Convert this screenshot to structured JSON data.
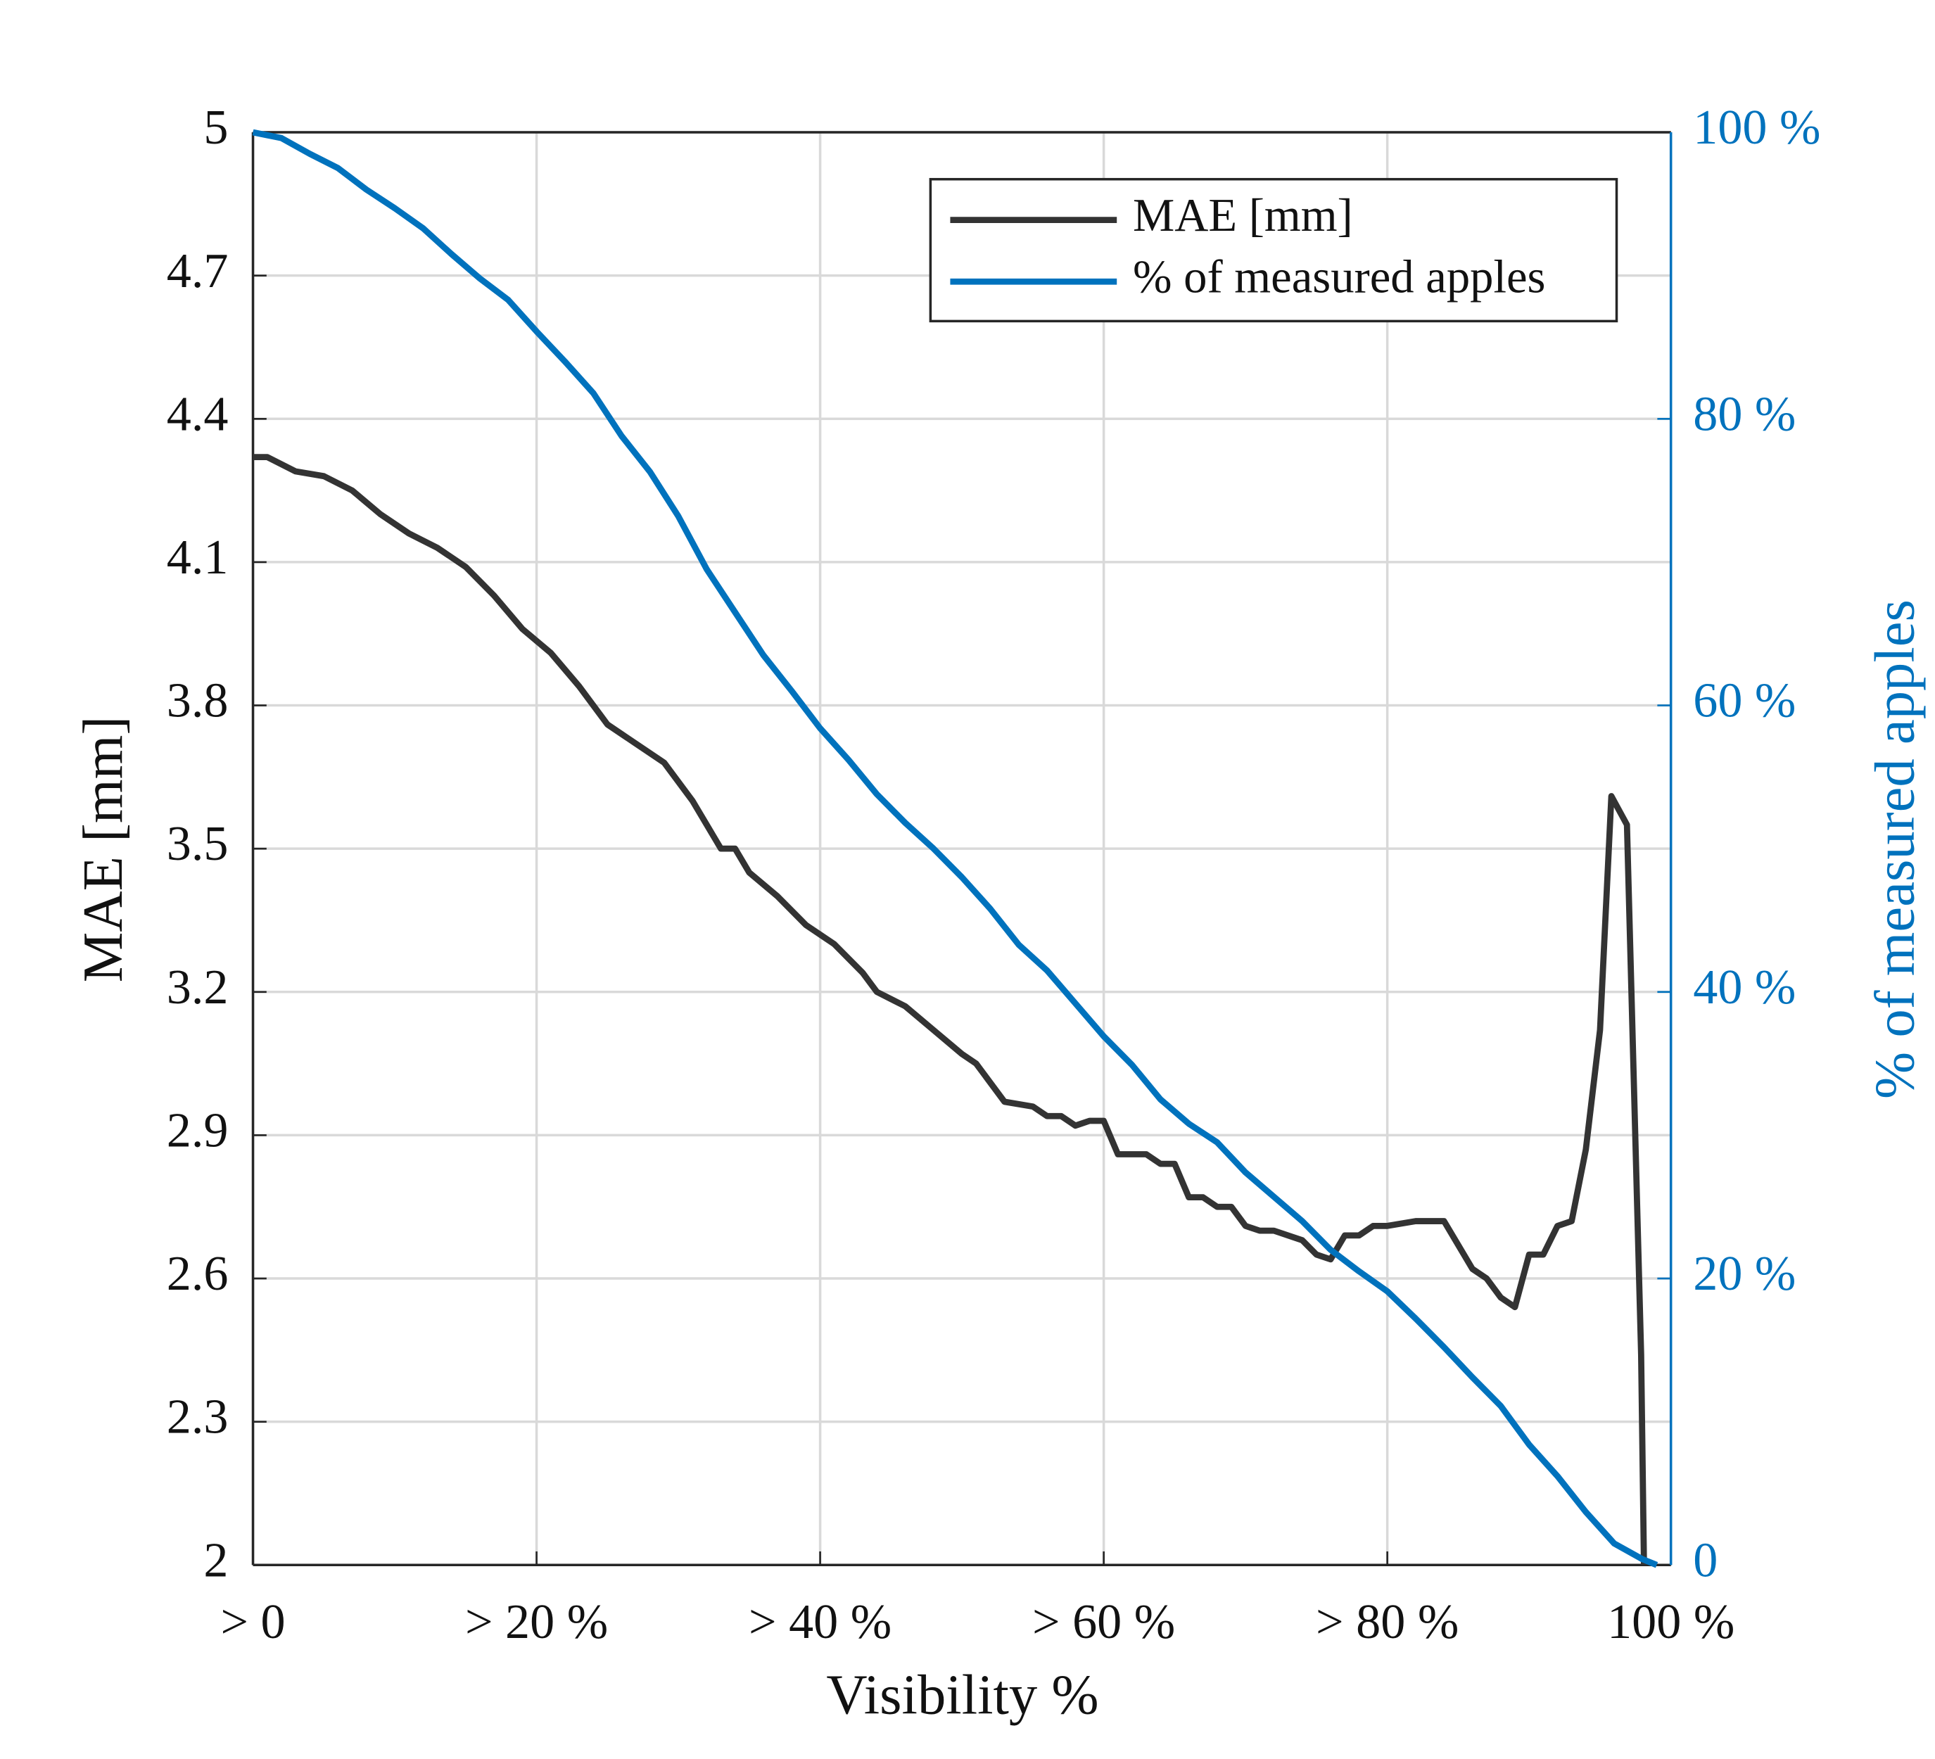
{
  "chart_data": {
    "type": "line",
    "x_label": "Visibility %",
    "y_label": "MAE [mm]",
    "y2_label": "% of measured apples",
    "xlim": [
      0,
      100
    ],
    "xticks": [
      {
        "value": 0,
        "label": "> 0"
      },
      {
        "value": 20,
        "label": "> 20 %"
      },
      {
        "value": 40,
        "label": "> 40 %"
      },
      {
        "value": 60,
        "label": "> 60 %"
      },
      {
        "value": 80,
        "label": "> 80 %"
      },
      {
        "value": 100,
        "label": "100 %"
      }
    ],
    "ylim": [
      2,
      5
    ],
    "yticks": [
      2,
      2.3,
      2.6,
      2.9,
      3.2,
      3.5,
      3.8,
      4.1,
      4.4,
      4.7,
      5
    ],
    "y2lim": [
      0,
      100
    ],
    "y2ticks": [
      0,
      {
        "value": 20,
        "label": "20 %"
      },
      {
        "value": 40,
        "label": "40 %"
      },
      {
        "value": 60,
        "label": "60 %"
      },
      {
        "value": 80,
        "label": "80 %"
      },
      {
        "value": 100,
        "label": "100 %"
      }
    ],
    "grid": true,
    "legend": "top-right",
    "y2_color": "#0072bd",
    "series": [
      {
        "name": "MAE [mm]",
        "color": "#333333",
        "x": [
          0,
          1,
          3,
          5,
          7,
          9,
          11,
          13,
          15,
          17,
          19,
          21,
          23,
          25,
          27,
          29,
          31,
          33,
          34,
          35,
          37,
          39,
          41,
          43,
          44,
          46,
          48,
          50,
          51,
          53,
          55,
          56,
          57,
          58,
          59,
          60,
          61,
          63,
          64,
          65,
          66,
          67,
          68,
          69,
          70,
          71,
          72,
          74,
          75,
          76,
          77,
          78,
          79,
          80,
          82,
          83,
          84,
          85,
          86,
          87,
          88,
          89,
          90,
          91,
          92,
          93,
          94,
          95,
          95.8,
          96.9,
          97.9,
          98.1
        ],
        "values": [
          4.32,
          4.32,
          4.29,
          4.28,
          4.25,
          4.2,
          4.16,
          4.13,
          4.09,
          4.03,
          3.96,
          3.91,
          3.84,
          3.76,
          3.72,
          3.68,
          3.6,
          3.5,
          3.5,
          3.45,
          3.4,
          3.34,
          3.3,
          3.24,
          3.2,
          3.17,
          3.12,
          3.07,
          3.05,
          2.97,
          2.96,
          2.94,
          2.94,
          2.92,
          2.93,
          2.93,
          2.86,
          2.86,
          2.84,
          2.84,
          2.77,
          2.77,
          2.75,
          2.75,
          2.71,
          2.7,
          2.7,
          2.68,
          2.65,
          2.64,
          2.69,
          2.69,
          2.71,
          2.71,
          2.72,
          2.72,
          2.72,
          2.67,
          2.62,
          2.6,
          2.56,
          2.54,
          2.65,
          2.65,
          2.71,
          2.72,
          2.87,
          3.12,
          3.61,
          3.55,
          2.44,
          2.0
        ]
      },
      {
        "name": "% of measured apples",
        "color": "#0072bd",
        "axis": "y2",
        "x": [
          0,
          2,
          4,
          6,
          8,
          10,
          12,
          14,
          16,
          18,
          20,
          22,
          24,
          26,
          28,
          30,
          32,
          34,
          36,
          38,
          40,
          42,
          44,
          46,
          48,
          50,
          52,
          54,
          56,
          58,
          60,
          62,
          64,
          66,
          68,
          70,
          72,
          74,
          76,
          78,
          80,
          82,
          84,
          86,
          88,
          90,
          92,
          94,
          96,
          98,
          99
        ],
        "values": [
          100,
          99.6,
          98.5,
          97.5,
          96,
          94.7,
          93.3,
          91.5,
          89.8,
          88.3,
          86.1,
          84,
          81.8,
          78.8,
          76.3,
          73.2,
          69.5,
          66.5,
          63.5,
          61,
          58.4,
          56.2,
          53.8,
          51.8,
          50,
          48,
          45.8,
          43.3,
          41.5,
          39.2,
          36.9,
          34.9,
          32.5,
          30.8,
          29.5,
          27.4,
          25.7,
          24,
          22,
          20.5,
          19.1,
          17.2,
          15.2,
          13.1,
          11.1,
          8.4,
          6.2,
          3.7,
          1.5,
          0.4,
          0
        ]
      }
    ]
  }
}
